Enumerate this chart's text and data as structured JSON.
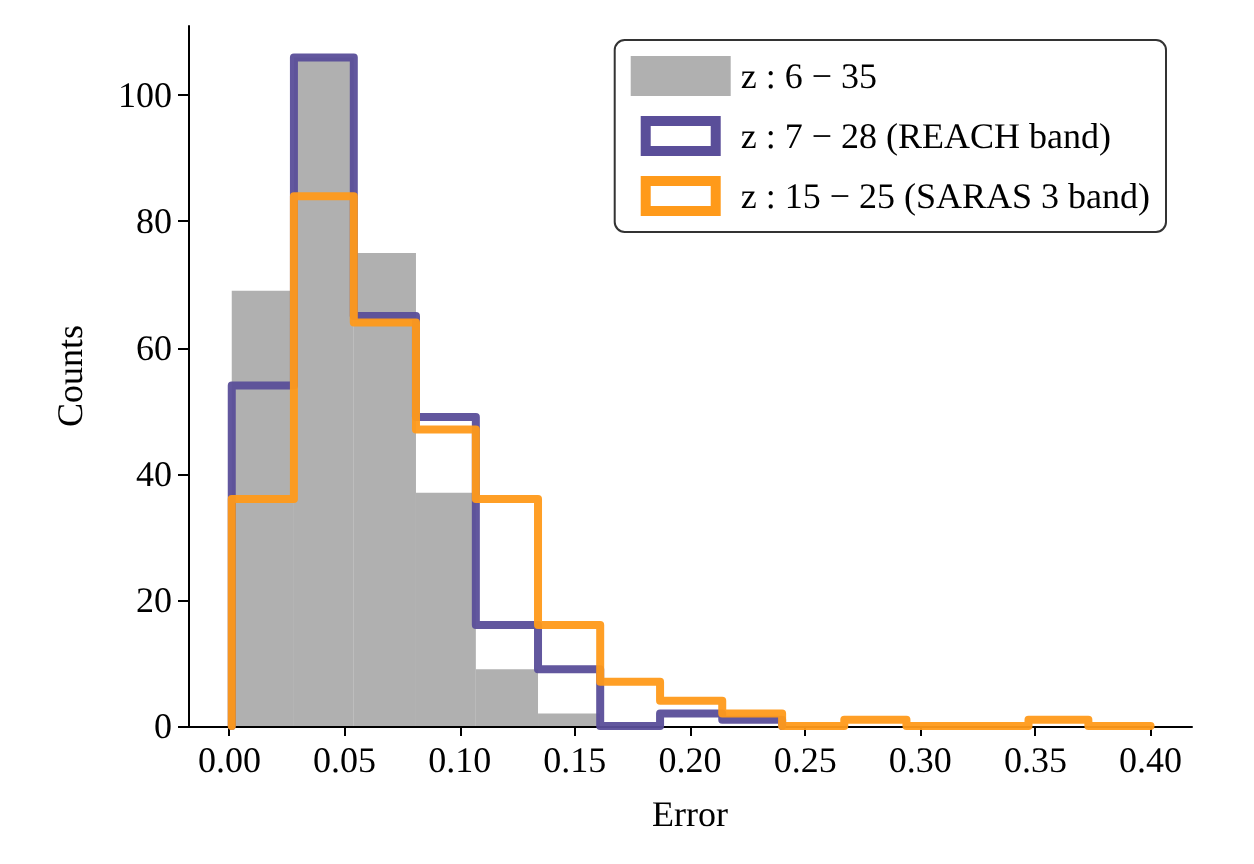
{
  "chart_data": {
    "type": "histogram",
    "xlabel": "Error",
    "ylabel": "Counts",
    "xlim": [
      -0.018,
      0.418
    ],
    "ylim": [
      0,
      111
    ],
    "xticks": [
      {
        "value": 0,
        "label": "0.00"
      },
      {
        "value": 0.05,
        "label": "0.05"
      },
      {
        "value": 0.1,
        "label": "0.10"
      },
      {
        "value": 0.15,
        "label": "0.15"
      },
      {
        "value": 0.2,
        "label": "0.20"
      },
      {
        "value": 0.25,
        "label": "0.25"
      },
      {
        "value": 0.3,
        "label": "0.30"
      },
      {
        "value": 0.35,
        "label": "0.35"
      },
      {
        "value": 0.4,
        "label": "0.40"
      }
    ],
    "yticks": [
      0,
      20,
      40,
      60,
      80,
      100
    ],
    "legend": "top right",
    "bins": [
      0.001,
      0.028,
      0.054,
      0.081,
      0.107,
      0.134,
      0.161
    ],
    "series": [
      {
        "name": "z : 6 − 35",
        "color": "#b0b0b0",
        "values": [
          69,
          106,
          75,
          37,
          9,
          2
        ]
      },
      {
        "name": "z : 7 − 28 (REACH band)",
        "type": "step",
        "color": "#5a4e99",
        "x": [
          0.001,
          0.001,
          0.028,
          0.054,
          0.081,
          0.107,
          0.134,
          0.161,
          0.187,
          0.214,
          0.24
        ],
        "values": [
          0,
          54,
          106,
          65,
          49,
          16,
          9,
          0,
          2,
          1,
          0
        ]
      },
      {
        "name": "z : 15 − 25 (SARAS 3 band)",
        "type": "step",
        "color": "#ff9a1a",
        "x": [
          0.001,
          0.001,
          0.028,
          0.054,
          0.081,
          0.107,
          0.134,
          0.161,
          0.187,
          0.214,
          0.24,
          0.267,
          0.294,
          0.32,
          0.347,
          0.373,
          0.4
        ],
        "values": [
          0,
          36,
          84,
          64,
          47,
          36,
          16,
          7,
          4,
          2,
          0,
          1,
          0,
          0,
          1,
          0,
          0
        ]
      }
    ]
  }
}
